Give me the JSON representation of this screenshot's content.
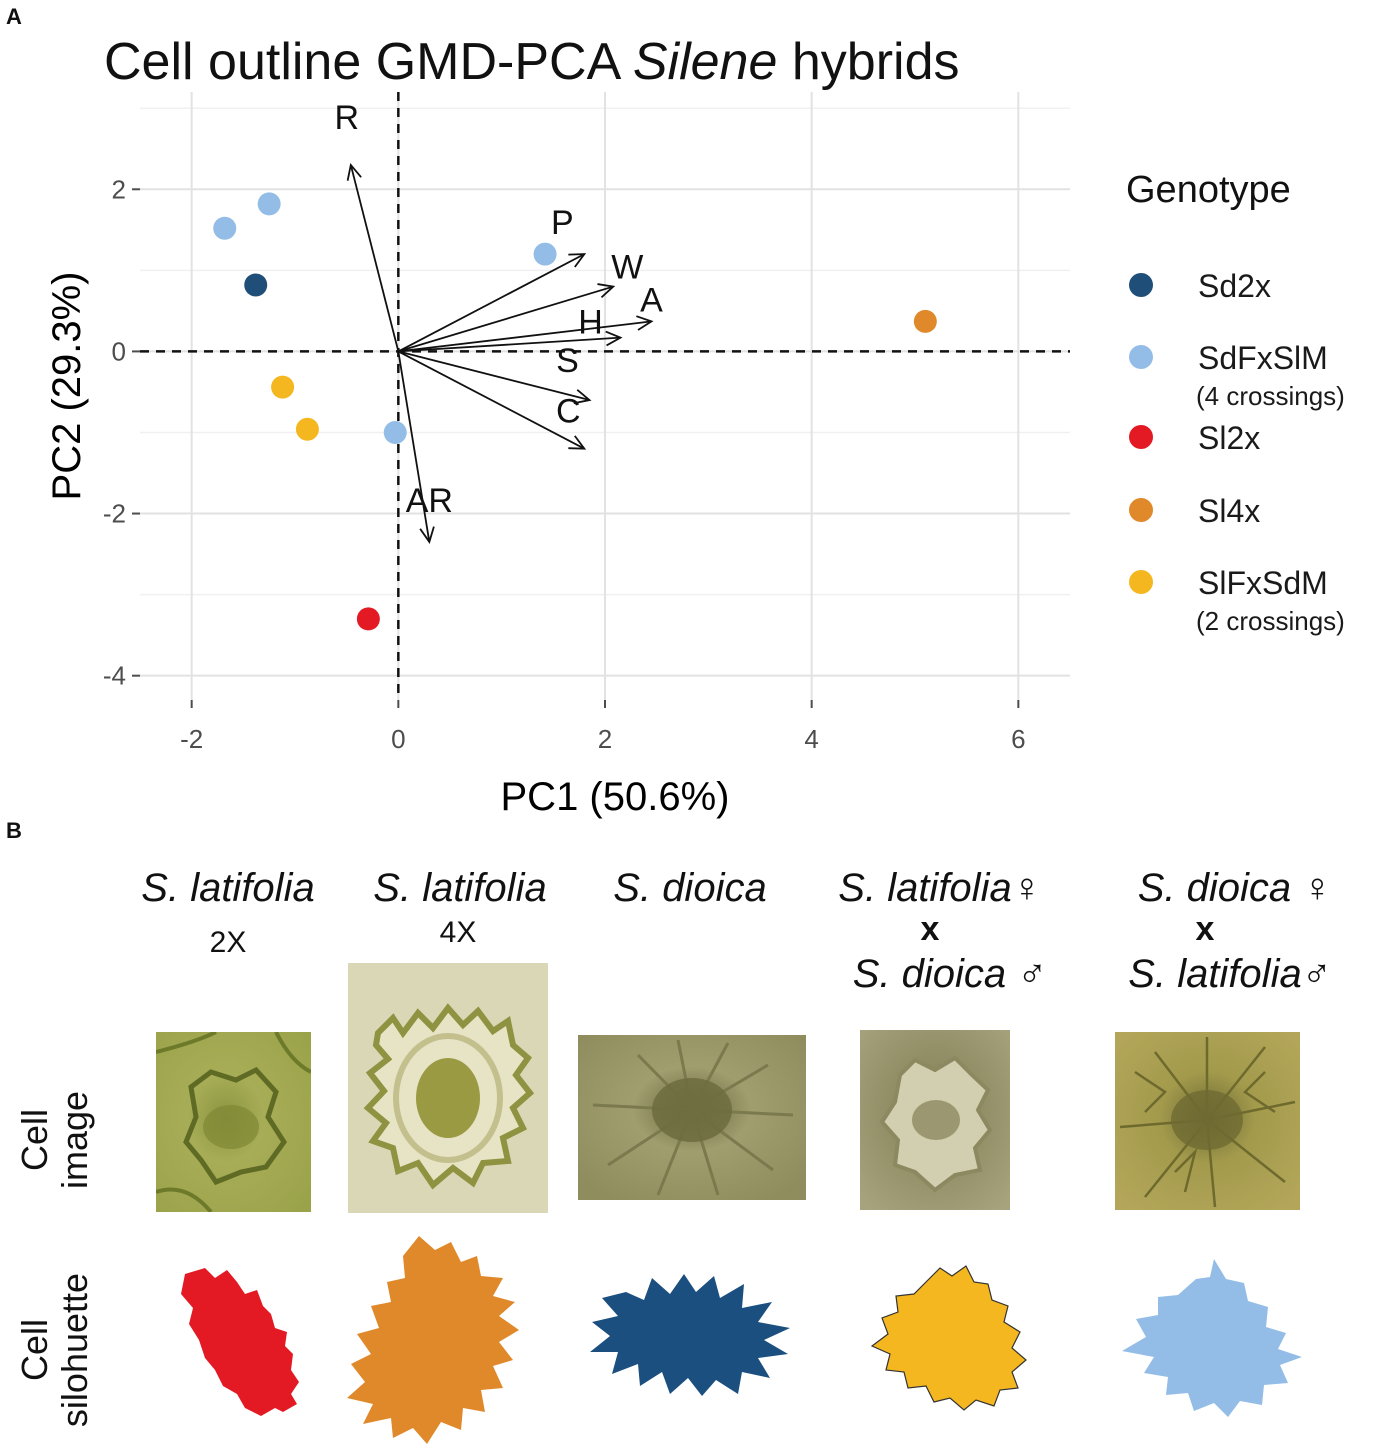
{
  "panel_a": {
    "letter": "A",
    "title_prefix": "Cell outline GMD-PCA ",
    "title_italic": "Silene",
    "title_suffix": " hybrids"
  },
  "panel_b": {
    "letter": "B",
    "columns": [
      {
        "species": "S. latifolia",
        "ploidy": "2X"
      },
      {
        "species": "S. latifolia",
        "ploidy": "4X"
      },
      {
        "species": "S. dioica"
      },
      {
        "female": "S. latifolia",
        "female_symbol": "♀",
        "cross": "x",
        "male": "S. dioica",
        "male_symbol": "♂"
      },
      {
        "female": "S. dioica",
        "female_symbol": "♀",
        "cross": "x",
        "male": "S. latifolia",
        "male_symbol": "♂"
      }
    ],
    "row_labels": {
      "image_line1": "Cell",
      "image_line2": "image",
      "silhouette_line1": "Cell",
      "silhouette_line2": "silohuette"
    },
    "silhouette_colors": [
      "#e31a23",
      "#e0892a",
      "#1b4f7f",
      "#f5b71f",
      "#93bde6"
    ]
  },
  "chart_data": {
    "type": "scatter",
    "title": "Cell outline GMD-PCA Silene hybrids",
    "xlabel": "PC1 (50.6%)",
    "ylabel": "PC2 (29.3%)",
    "xlim": [
      -2.5,
      6.5
    ],
    "ylim": [
      -4.3,
      3.2
    ],
    "xticks": [
      -2,
      0,
      2,
      4,
      6
    ],
    "yticks": [
      -4,
      -2,
      0,
      2
    ],
    "grid": true,
    "legend": {
      "title": "Genotype",
      "position": "right",
      "entries": [
        {
          "name": "Sd2x",
          "color": "#1f4e79"
        },
        {
          "name": "SdFxSlM",
          "note": "(4 crossings)",
          "color": "#93bde6"
        },
        {
          "name": "Sl2x",
          "color": "#e31a23"
        },
        {
          "name": "Sl4x",
          "color": "#e0892a"
        },
        {
          "name": "SlFxSdM",
          "note": "(2 crossings)",
          "color": "#f5b71f"
        }
      ]
    },
    "series": [
      {
        "name": "Sd2x",
        "points": [
          [
            -1.38,
            0.82
          ]
        ]
      },
      {
        "name": "SdFxSlM",
        "points": [
          [
            -1.68,
            1.52
          ],
          [
            -1.25,
            1.82
          ],
          [
            1.42,
            1.2
          ],
          [
            -0.03,
            -1.0
          ]
        ]
      },
      {
        "name": "Sl2x",
        "points": [
          [
            -0.29,
            -3.3
          ]
        ]
      },
      {
        "name": "Sl4x",
        "points": [
          [
            5.1,
            0.37
          ]
        ]
      },
      {
        "name": "SlFxSdM",
        "points": [
          [
            -1.12,
            -0.44
          ],
          [
            -0.88,
            -0.96
          ]
        ]
      }
    ],
    "loadings": [
      {
        "name": "R",
        "x": -0.46,
        "y": 2.3
      },
      {
        "name": "P",
        "x": 1.8,
        "y": 1.2
      },
      {
        "name": "W",
        "x": 2.08,
        "y": 0.8
      },
      {
        "name": "A",
        "x": 2.45,
        "y": 0.37
      },
      {
        "name": "H",
        "x": 2.15,
        "y": 0.17
      },
      {
        "name": "S",
        "x": 1.85,
        "y": -0.6
      },
      {
        "name": "C",
        "x": 1.8,
        "y": -1.2
      },
      {
        "name": "AR",
        "x": 0.3,
        "y": -2.35
      }
    ],
    "reference_lines": {
      "x": 0,
      "y": 0
    }
  }
}
